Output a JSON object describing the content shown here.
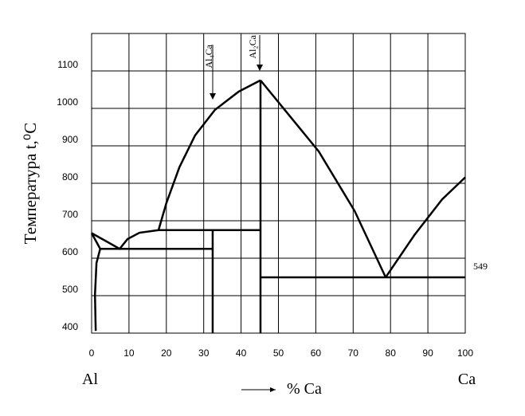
{
  "chart_data": {
    "type": "line",
    "ylabel": "Температура  t,⁰C",
    "xlabel": "% Ca",
    "left_label": "Al",
    "right_label": "Ca",
    "annotations": [
      "Al₄Ca",
      "Al₂Ca"
    ],
    "xlim": [
      0,
      100
    ],
    "ylim": [
      400,
      1200
    ],
    "xticks": [
      0,
      10,
      20,
      30,
      40,
      50,
      60,
      70,
      80,
      90,
      100
    ],
    "yticks": [
      400,
      500,
      600,
      700,
      800,
      900,
      1000,
      1100
    ],
    "grid": true,
    "series": [
      {
        "color": "#000000",
        "x": [
          0,
          7.5,
          9.6,
          12.8,
          17.9
        ],
        "values": [
          667,
          625,
          651,
          668,
          675
        ]
      },
      {
        "color": "#000000",
        "x": [
          0,
          2.3
        ],
        "values": [
          667,
          625
        ]
      },
      {
        "color": "#000000",
        "x": [
          2.3,
          1.3,
          0.9,
          1.1
        ],
        "values": [
          625,
          587,
          502,
          406
        ]
      },
      {
        "color": "#000000",
        "x": [
          2.3,
          32.4
        ],
        "values": [
          625,
          625
        ]
      },
      {
        "color": "#000000",
        "x": [
          17.9,
          20,
          23.5,
          27.7,
          33.0,
          39.4,
          45.2
        ],
        "values": [
          675,
          747,
          843,
          928,
          996,
          1045,
          1075
        ]
      },
      {
        "color": "#000000",
        "x": [
          17.9,
          45.2
        ],
        "values": [
          675,
          675
        ]
      },
      {
        "color": "#000000",
        "x": [
          32.4,
          32.4
        ],
        "values": [
          675,
          400
        ]
      },
      {
        "color": "#000000",
        "x": [
          45.2,
          45.2
        ],
        "values": [
          1075,
          400
        ]
      },
      {
        "color": "#000000",
        "x": [
          45.2,
          60.8,
          70.4,
          78.7
        ],
        "values": [
          1075,
          885,
          726,
          549
        ]
      },
      {
        "color": "#000000",
        "x": [
          78.7,
          86.4,
          93.8,
          100
        ],
        "values": [
          549,
          662,
          757,
          816
        ]
      },
      {
        "color": "#000000",
        "x": [
          45.2,
          100
        ],
        "values": [
          549,
          549
        ]
      }
    ]
  }
}
